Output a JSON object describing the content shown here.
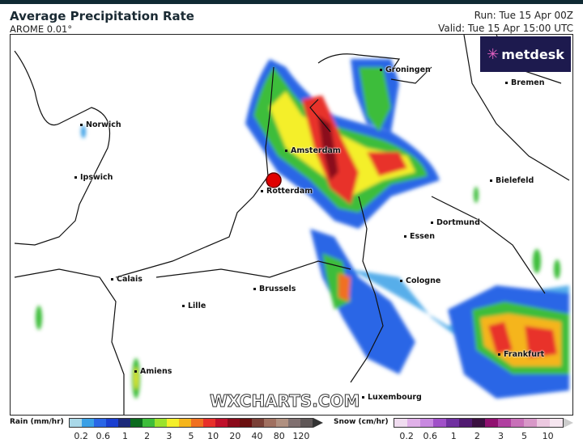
{
  "header": {
    "title": "Average Precipitation Rate",
    "model": "AROME 0.01°",
    "run": "Run: Tue 15 Apr 00Z",
    "valid": "Valid: Tue 15 Apr 15:00 UTC"
  },
  "logo": {
    "text": "metdesk"
  },
  "watermark": "WXCHARTS.COM",
  "cities": [
    {
      "name": "Groningen"
    },
    {
      "name": "Bremen"
    },
    {
      "name": "Norwich"
    },
    {
      "name": "Amsterdam"
    },
    {
      "name": "Ipswich"
    },
    {
      "name": "Bielefeld"
    },
    {
      "name": "Rotterdam"
    },
    {
      "name": "Dortmund"
    },
    {
      "name": "Essen"
    },
    {
      "name": "Calais"
    },
    {
      "name": "Cologne"
    },
    {
      "name": "Brussels"
    },
    {
      "name": "Lille"
    },
    {
      "name": "Frankfurt"
    },
    {
      "name": "Amiens"
    },
    {
      "name": "Luxembourg"
    }
  ],
  "legend": {
    "rain": {
      "label": "Rain (mm/hr)",
      "ticks": [
        "0.2",
        "0.6",
        "1",
        "2",
        "3",
        "5",
        "10",
        "20",
        "40",
        "80",
        "120"
      ],
      "colors": [
        "#a9d8e8",
        "#3aa0e6",
        "#2a66e6",
        "#1a3fd0",
        "#1c2a7a",
        "#0b6b1e",
        "#3dbd3a",
        "#9be22c",
        "#f4ef2a",
        "#f5b51c",
        "#f07020",
        "#e8302a",
        "#c0102a",
        "#8a0a1a",
        "#6a1010",
        "#7a4036",
        "#a07060",
        "#b09080",
        "#807070",
        "#605858"
      ]
    },
    "snow": {
      "label": "Snow (cm/hr)",
      "ticks": [
        "0.2",
        "0.6",
        "1",
        "2",
        "3",
        "5",
        "10"
      ],
      "colors": [
        "#f0dcf0",
        "#e0b0e8",
        "#c888e0",
        "#a050c8",
        "#7030a0",
        "#501a70",
        "#3a1040",
        "#901070",
        "#b040a0",
        "#c870b8",
        "#d898c8",
        "#ecc8e0",
        "#f6e6f0"
      ]
    }
  },
  "marker": {
    "color": "#e00000"
  }
}
